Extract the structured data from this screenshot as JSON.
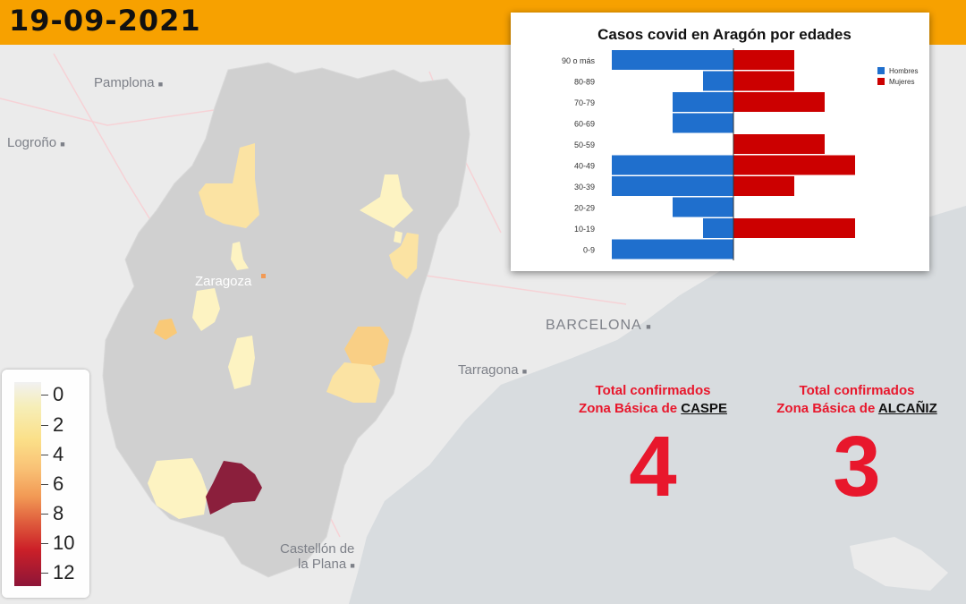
{
  "header": {
    "date": "19-09-2021"
  },
  "map": {
    "cities": [
      {
        "name": "Pamplona",
        "marker": "■"
      },
      {
        "name": "Logroño",
        "marker": "■"
      },
      {
        "name": "Zaragoza",
        "marker": ""
      },
      {
        "name": "BARCELONA",
        "marker": "■"
      },
      {
        "name": "Tarragona",
        "marker": "■"
      },
      {
        "name": "Castellón de",
        "marker": ""
      },
      {
        "name": "la Plana",
        "marker": "■"
      }
    ],
    "colors": {
      "land": "#e2e2e2",
      "sea": "#d9dde0",
      "aragon": "#cfcfcf",
      "high": "#8b1f3c"
    }
  },
  "legend": {
    "labels": [
      "0",
      "2",
      "4",
      "6",
      "8",
      "10",
      "12"
    ]
  },
  "chart_data": {
    "type": "bar",
    "title": "Casos covid en Aragón por edades",
    "categories": [
      "90 o más",
      "80-89",
      "70-79",
      "60-69",
      "50-59",
      "40-49",
      "30-39",
      "20-29",
      "10-19",
      "0-9"
    ],
    "series": [
      {
        "name": "Hombres",
        "color": "#1f6fcd",
        "values": [
          4,
          1,
          2,
          2,
          0,
          4,
          4,
          2,
          1,
          4
        ]
      },
      {
        "name": "Mujeres",
        "color": "#cc0000",
        "values": [
          2,
          2,
          3,
          0,
          3,
          4,
          2,
          0,
          4,
          0
        ]
      }
    ],
    "legend_position": "right",
    "grid": false
  },
  "stats": [
    {
      "line1": "Total confirmados",
      "line2_prefix": "Zona Básica de ",
      "zona": "CASPE",
      "value": "4"
    },
    {
      "line1": "Total confirmados",
      "line2_prefix": "Zona Básica de ",
      "zona": "ALCAÑIZ",
      "value": "3"
    }
  ]
}
